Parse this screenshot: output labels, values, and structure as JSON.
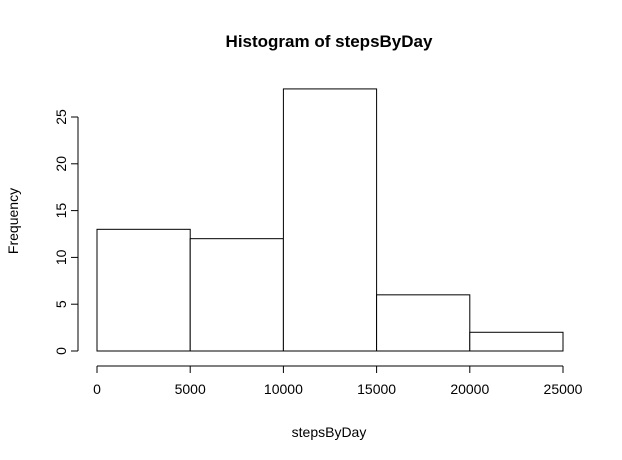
{
  "chart_data": {
    "type": "bar",
    "title": "Histogram of stepsByDay",
    "xlabel": "stepsByDay",
    "ylabel": "Frequency",
    "bins": [
      {
        "from": 0,
        "to": 5000,
        "count": 13
      },
      {
        "from": 5000,
        "to": 10000,
        "count": 12
      },
      {
        "from": 10000,
        "to": 15000,
        "count": 28
      },
      {
        "from": 15000,
        "to": 20000,
        "count": 6
      },
      {
        "from": 20000,
        "to": 25000,
        "count": 2
      }
    ],
    "xlim": [
      0,
      25000
    ],
    "ylim": [
      0,
      28
    ],
    "x_ticks": [
      0,
      5000,
      10000,
      15000,
      20000,
      25000
    ],
    "y_ticks": [
      0,
      5,
      10,
      15,
      20,
      25
    ],
    "grid": false,
    "bar_fill": "#ffffff",
    "bar_stroke": "#000000"
  }
}
